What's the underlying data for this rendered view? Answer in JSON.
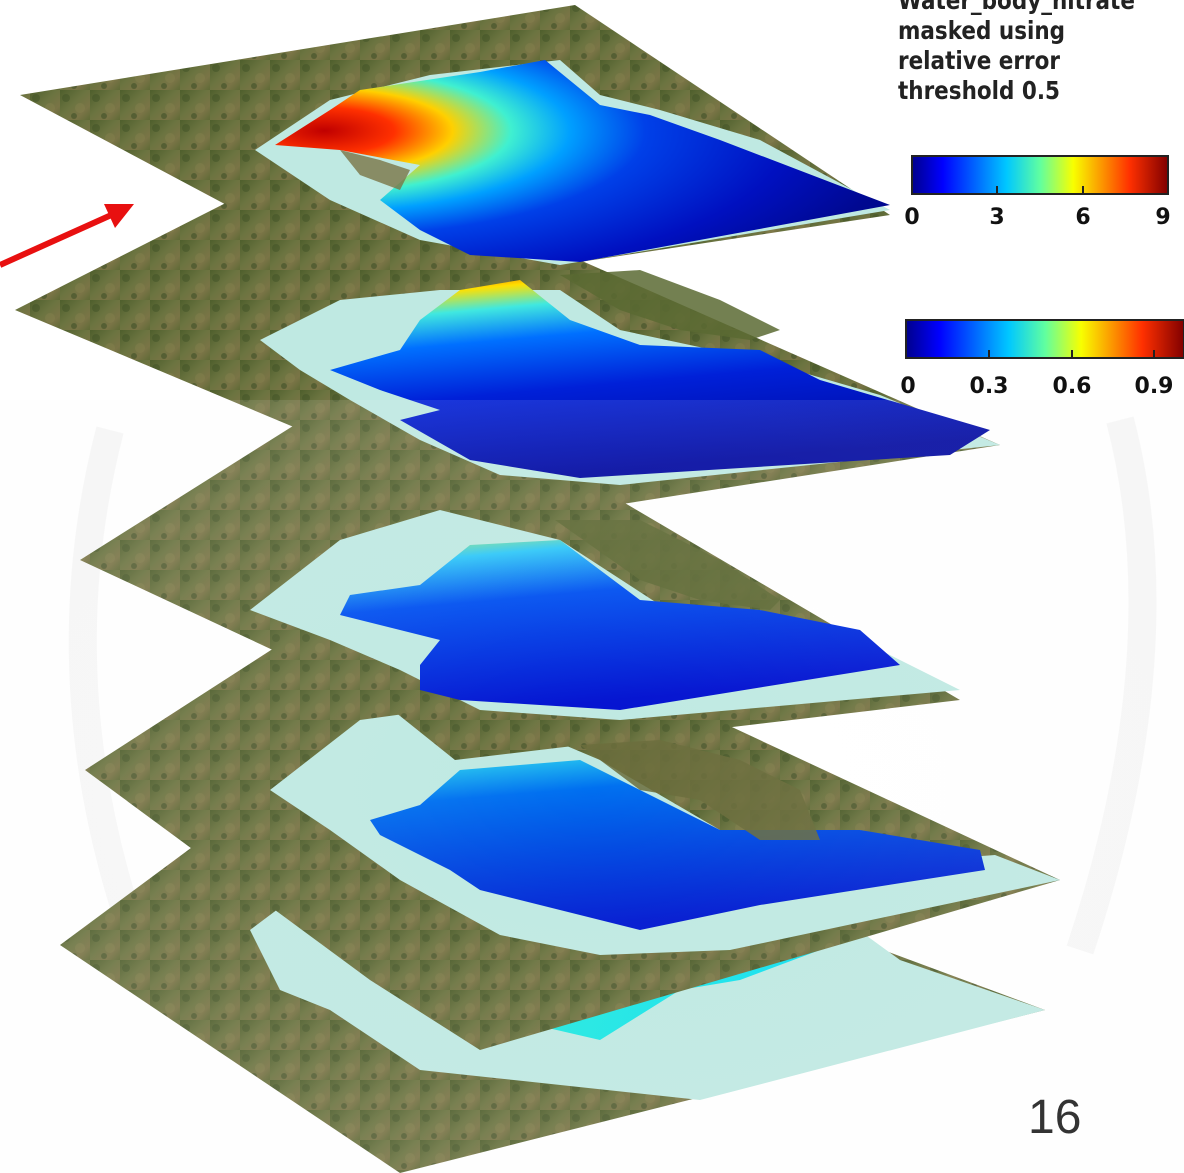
{
  "caption": {
    "line1": "Water_body_nitrate",
    "line2": "masked using",
    "line3": "relative error",
    "line4": "threshold 0.5"
  },
  "colorbar_top": {
    "ticks": [
      "0",
      "3",
      "6",
      "9"
    ],
    "range": [
      0,
      9
    ]
  },
  "colorbar_bottom": {
    "ticks": [
      "0",
      "0.3",
      "0.6",
      "0.9"
    ],
    "range": [
      0,
      0.9
    ]
  },
  "layers": [
    {
      "name": "nitrate-field",
      "pattern": "radial",
      "max_color": "#d40000"
    },
    {
      "name": "relative-error-1",
      "pattern": "gradient",
      "max_color": "#e83000"
    },
    {
      "name": "relative-error-2",
      "pattern": "gradient",
      "max_color": "#b8f060"
    },
    {
      "name": "relative-error-3",
      "pattern": "gradient",
      "max_color": "#30e0f0"
    },
    {
      "name": "relative-error-4",
      "pattern": "flat",
      "max_color": "#30f0d0"
    }
  ],
  "colors": {
    "land": "#5b6a34",
    "mask": "#b8e8e0",
    "arrow": "#e81010",
    "deep_blue": "#0010c8"
  },
  "slide": {
    "page_number": "16"
  }
}
